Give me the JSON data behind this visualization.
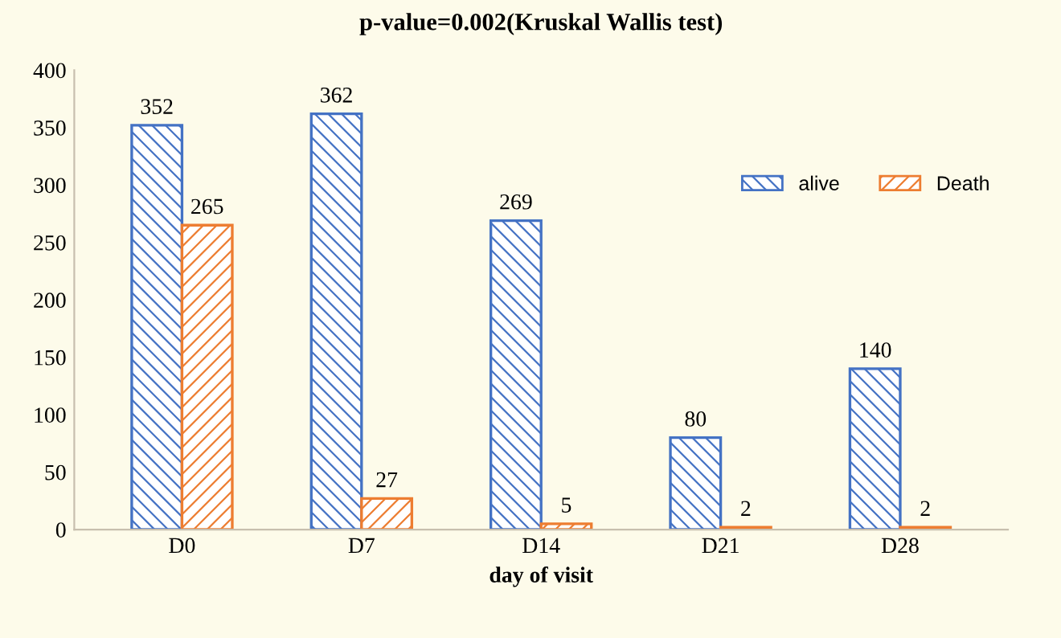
{
  "chart_data": {
    "type": "bar",
    "title": "p-value=0.002(Kruskal Wallis test)",
    "xlabel": "day of visit",
    "categories": [
      "D0",
      "D7",
      "D14",
      "D21",
      "D28"
    ],
    "series": [
      {
        "name": "alive",
        "color": "#4472c4",
        "values": [
          352,
          362,
          269,
          80,
          140
        ]
      },
      {
        "name": "Death",
        "color": "#ed7d31",
        "values": [
          265,
          27,
          5,
          2,
          2
        ]
      }
    ],
    "ylim": [
      0,
      400
    ],
    "yticks": [
      0,
      50,
      100,
      150,
      200,
      250,
      300,
      350,
      400
    ],
    "data_labels": true,
    "legend": "right",
    "grid": false
  }
}
